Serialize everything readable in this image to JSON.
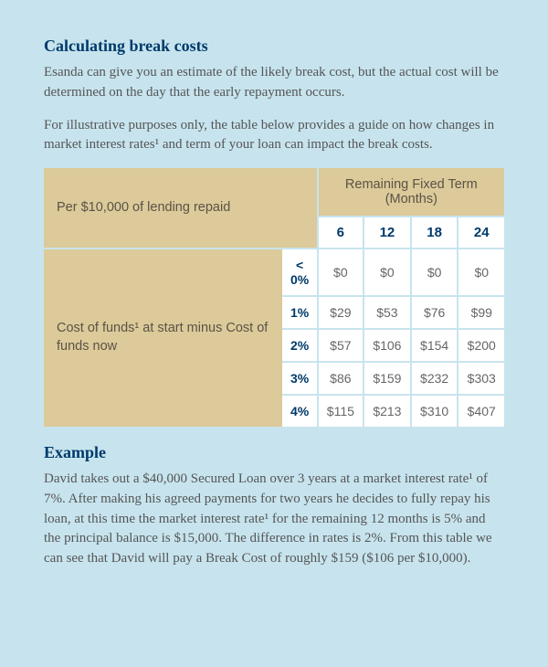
{
  "section1": {
    "heading": "Calculating break costs",
    "para1": "Esanda can give you an estimate of the likely break cost, but the actual cost will be determined on the day that the early repayment occurs.",
    "para2": "For illustrative purposes only, the table below provides a guide on how changes in market interest rates¹ and term of your loan can impact the break costs."
  },
  "table": {
    "corner_label": "Per $10,000 of lending repaid",
    "term_header": "Remaining Fixed Term (Months)",
    "months": [
      "6",
      "12",
      "18",
      "24"
    ],
    "row_label": "Cost of funds¹ at start minus Cost of funds now",
    "rows": [
      {
        "pct": "< 0%",
        "vals": [
          "$0",
          "$0",
          "$0",
          "$0"
        ]
      },
      {
        "pct": "1%",
        "vals": [
          "$29",
          "$53",
          "$76",
          "$99"
        ]
      },
      {
        "pct": "2%",
        "vals": [
          "$57",
          "$106",
          "$154",
          "$200"
        ]
      },
      {
        "pct": "3%",
        "vals": [
          "$86",
          "$159",
          "$232",
          "$303"
        ]
      },
      {
        "pct": "4%",
        "vals": [
          "$115",
          "$213",
          "$310",
          "$407"
        ]
      }
    ]
  },
  "section2": {
    "heading": "Example",
    "para": "David takes out a $40,000 Secured Loan over 3 years at a market interest rate¹ of 7%. After making his agreed payments for two years he decides to fully repay his loan, at this time the market interest rate¹ for the remaining 12 months is 5% and the principal balance is $15,000. The difference in rates is 2%. From this table we can see that David will pay a Break Cost of roughly $159 ($106 per $10,000)."
  }
}
